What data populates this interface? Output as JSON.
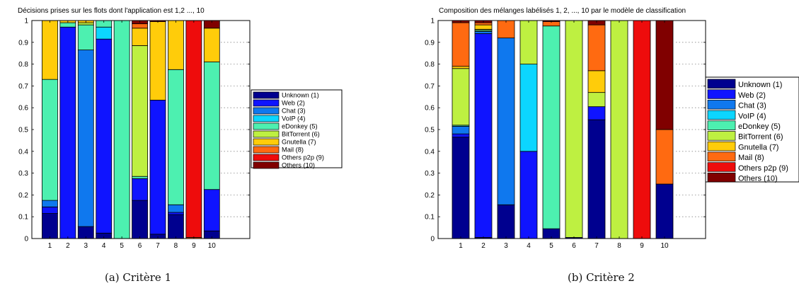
{
  "colors": {
    "Unknown (1)": "#00008f",
    "Web (2)": "#0f14ff",
    "Chat (3)": "#0f78ee",
    "VoIP (4)": "#0cd6ff",
    "eDonkey (5)": "#4df0b0",
    "BitTorrent (6)": "#bef041",
    "Gnutella (7)": "#ffcc0a",
    "Mail (8)": "#ff6a11",
    "Others p2p (9)": "#ee0c0c",
    "Others (10)": "#800000"
  },
  "captions": {
    "a": "(a)  Critère 1",
    "b": "(b)  Critère 2"
  },
  "chart_data": [
    {
      "type": "bar",
      "stacked": true,
      "title": "Décisions prises sur les flots dont l'application est 1,2 ..., 10",
      "xlabel": "",
      "ylabel": "",
      "ylim": [
        0,
        1
      ],
      "yticks": [
        "0",
        "0.1",
        "0.2",
        "0.3",
        "0.4",
        "0.5",
        "0.6",
        "0.7",
        "0.8",
        "0.9",
        "1"
      ],
      "categories": [
        "1",
        "2",
        "3",
        "4",
        "5",
        "6",
        "7",
        "8",
        "9",
        "10"
      ],
      "grid": "dotted lines in empty area right of bars",
      "legend_position": "right",
      "series": [
        {
          "name": "Unknown (1)",
          "values": [
            0.115,
            0.0,
            0.055,
            0.025,
            0.0,
            0.175,
            0.02,
            0.11,
            0.0,
            0.035
          ]
        },
        {
          "name": "Web (2)",
          "values": [
            0.03,
            0.97,
            0.0,
            0.89,
            0.0,
            0.1,
            0.615,
            0.01,
            0.0,
            0.19
          ]
        },
        {
          "name": "Chat (3)",
          "values": [
            0.03,
            0.0,
            0.81,
            0.0,
            0.0,
            0.0,
            0.0,
            0.035,
            0.0,
            0.0
          ]
        },
        {
          "name": "VoIP (4)",
          "values": [
            0.0,
            0.0,
            0.0,
            0.055,
            0.0,
            0.0,
            0.0,
            0.0,
            0.0,
            0.0
          ]
        },
        {
          "name": "eDonkey (5)",
          "values": [
            0.555,
            0.02,
            0.115,
            0.03,
            1.0,
            0.01,
            0.0,
            0.62,
            0.0,
            0.585
          ]
        },
        {
          "name": "BitTorrent (6)",
          "values": [
            0.0,
            0.0,
            0.01,
            0.0,
            0.0,
            0.6,
            0.0,
            0.0,
            0.0,
            0.0
          ]
        },
        {
          "name": "Gnutella (7)",
          "values": [
            0.27,
            0.01,
            0.01,
            0.0,
            0.0,
            0.08,
            0.36,
            0.225,
            0.0,
            0.155
          ]
        },
        {
          "name": "Mail (8)",
          "values": [
            0.0,
            0.0,
            0.0,
            0.0,
            0.0,
            0.02,
            0.0,
            0.0,
            0.005,
            0.0
          ]
        },
        {
          "name": "Others p2p (9)",
          "values": [
            0.0,
            0.0,
            0.0,
            0.0,
            0.0,
            0.0,
            0.0,
            0.0,
            0.995,
            0.0
          ]
        },
        {
          "name": "Others (10)",
          "values": [
            0.0,
            0.0,
            0.0,
            0.0,
            0.0,
            0.015,
            0.005,
            0.0,
            0.0,
            0.035
          ]
        }
      ]
    },
    {
      "type": "bar",
      "stacked": true,
      "title": "Composition des mélanges labélisés 1, 2, ..., 10 par le modèle de classification",
      "xlabel": "",
      "ylabel": "",
      "ylim": [
        0,
        1
      ],
      "yticks": [
        "0",
        "0.1",
        "0.2",
        "0.3",
        "0.4",
        "0.5",
        "0.6",
        "0.7",
        "0.8",
        "0.9",
        "1"
      ],
      "categories": [
        "1",
        "2",
        "3",
        "4",
        "5",
        "6",
        "7",
        "8",
        "9",
        "10"
      ],
      "grid": "dotted lines in empty area right of bars",
      "legend_position": "right",
      "series": [
        {
          "name": "Unknown (1)",
          "values": [
            0.465,
            0.005,
            0.155,
            0.0,
            0.045,
            0.005,
            0.545,
            0.0,
            0.0,
            0.25
          ]
        },
        {
          "name": "Web (2)",
          "values": [
            0.015,
            0.935,
            0.0,
            0.4,
            0.0,
            0.0,
            0.06,
            0.0,
            0.0,
            0.0
          ]
        },
        {
          "name": "Chat (3)",
          "values": [
            0.035,
            0.01,
            0.765,
            0.0,
            0.0,
            0.0,
            0.0,
            0.0,
            0.0,
            0.0
          ]
        },
        {
          "name": "VoIP (4)",
          "values": [
            0.0,
            0.0,
            0.0,
            0.4,
            0.0,
            0.0,
            0.0,
            0.0,
            0.0,
            0.0
          ]
        },
        {
          "name": "eDonkey (5)",
          "values": [
            0.005,
            0.005,
            0.0,
            0.0,
            0.93,
            0.0,
            0.0,
            0.0,
            0.0,
            0.0
          ]
        },
        {
          "name": "BitTorrent (6)",
          "values": [
            0.26,
            0.005,
            0.0,
            0.2,
            0.0,
            0.995,
            0.065,
            1.0,
            0.0,
            0.0
          ]
        },
        {
          "name": "Gnutella (7)",
          "values": [
            0.01,
            0.02,
            0.0,
            0.0,
            0.0,
            0.0,
            0.1,
            0.0,
            0.0,
            0.0
          ]
        },
        {
          "name": "Mail (8)",
          "values": [
            0.2,
            0.01,
            0.08,
            0.0,
            0.02,
            0.0,
            0.21,
            0.0,
            0.0,
            0.25
          ]
        },
        {
          "name": "Others p2p (9)",
          "values": [
            0.0,
            0.0,
            0.0,
            0.0,
            0.0,
            0.0,
            0.0,
            0.0,
            1.0,
            0.0
          ]
        },
        {
          "name": "Others (10)",
          "values": [
            0.01,
            0.01,
            0.0,
            0.0,
            0.005,
            0.0,
            0.02,
            0.0,
            0.0,
            0.5
          ]
        }
      ]
    }
  ]
}
